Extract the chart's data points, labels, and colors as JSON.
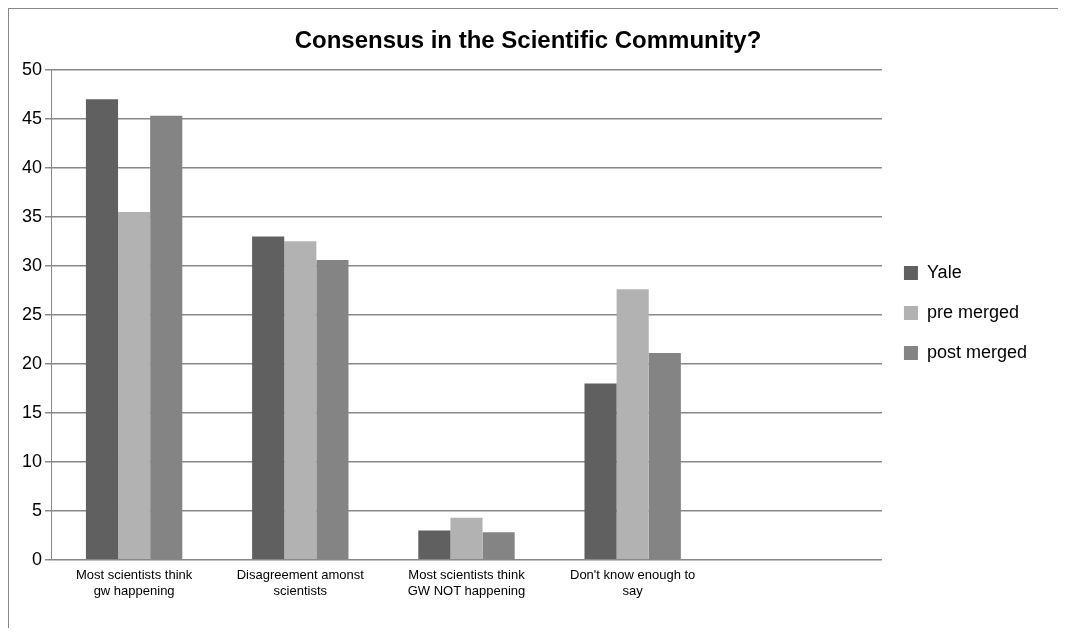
{
  "chart_data": {
    "type": "bar",
    "title": "Consensus in the Scientific Community?",
    "categories": [
      "Most scientists think gw happening",
      "Disagreement amonst scientists",
      "Most scientists think GW NOT happening",
      "Don't know enough to say",
      null
    ],
    "series": [
      {
        "name": "Yale",
        "color": "#606060",
        "values": [
          47,
          33,
          3.0,
          18.0,
          null
        ]
      },
      {
        "name": "pre merged",
        "color": "#b2b2b2",
        "values": [
          35.5,
          32.5,
          4.3,
          27.6,
          null
        ]
      },
      {
        "name": "post merged",
        "color": "#848484",
        "values": [
          45.3,
          30.6,
          2.8,
          21.1,
          null
        ]
      }
    ],
    "ylim": [
      0,
      50
    ],
    "yticks": [
      0,
      5,
      10,
      15,
      20,
      25,
      30,
      35,
      40,
      45,
      50
    ],
    "grid": "y",
    "legend": "right"
  }
}
